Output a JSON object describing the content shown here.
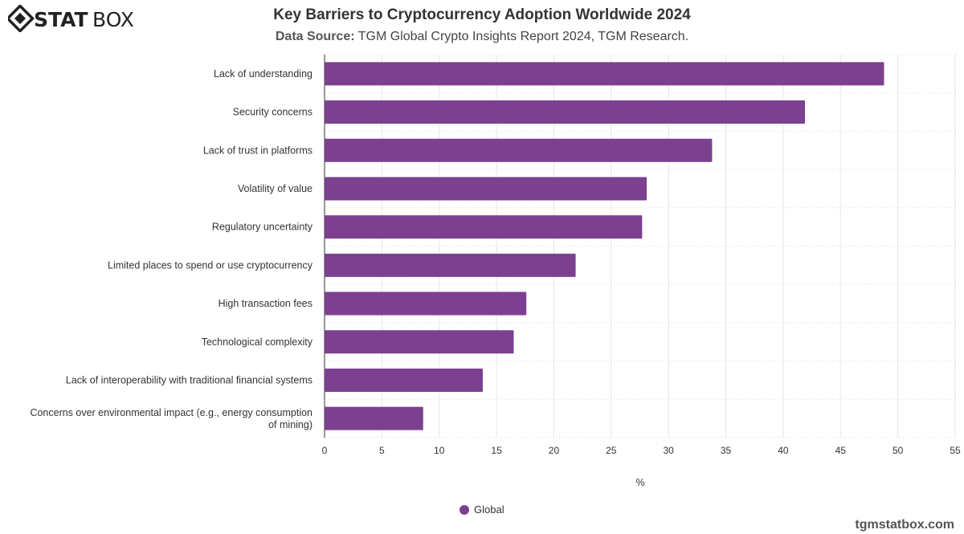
{
  "brand": {
    "logo_text": "STATBOX",
    "footer": "tgmstatbox.com"
  },
  "header": {
    "title": "Key Barriers to Cryptocurrency Adoption Worldwide 2024",
    "source_label": "Data Source:",
    "source_text": "TGM Global Crypto Insights Report 2024, TGM Research."
  },
  "chart_data": {
    "type": "bar",
    "orientation": "horizontal",
    "title": "Key Barriers to Cryptocurrency Adoption Worldwide 2024",
    "categories": [
      "Lack of understanding",
      "Security concerns",
      "Lack of trust in platforms",
      "Volatility of value",
      "Regulatory uncertainty",
      "Limited places to spend or use cryptocurrency",
      "High transaction fees",
      "Technological complexity",
      "Lack of interoperability with traditional financial systems",
      "Concerns over environmental impact (e.g., energy consumption of mining)"
    ],
    "series": [
      {
        "name": "Global",
        "color": "#7b418f",
        "values": [
          48.8,
          41.9,
          33.8,
          28.1,
          27.7,
          21.9,
          17.6,
          16.5,
          13.8,
          8.6
        ]
      }
    ],
    "xlabel": "%",
    "xlim": [
      0,
      55
    ],
    "xticks": [
      0,
      5,
      10,
      15,
      20,
      25,
      30,
      35,
      40,
      45,
      50,
      55
    ],
    "grid": true,
    "legend": "bottom"
  }
}
